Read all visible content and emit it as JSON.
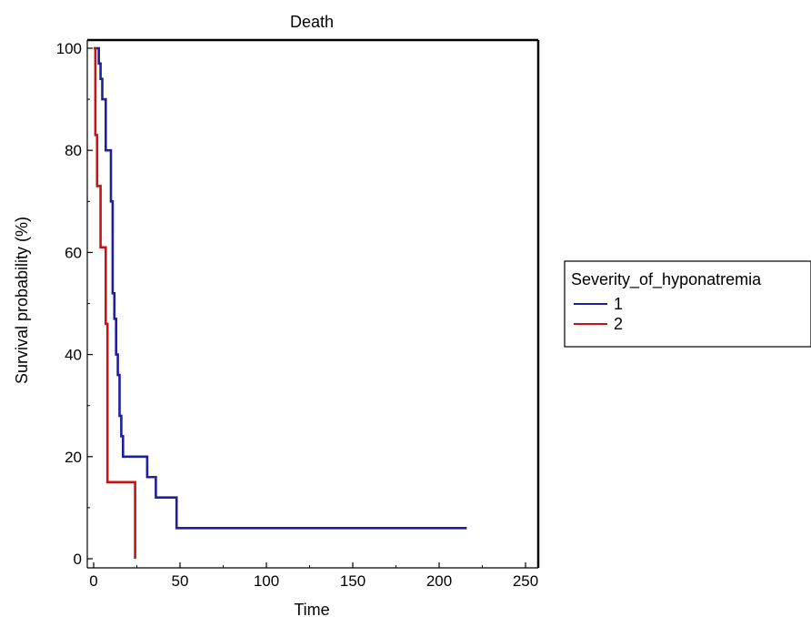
{
  "chart_data": {
    "type": "line",
    "title": "Death",
    "xlabel": "Time",
    "ylabel": "Survival probability (%)",
    "xlim": [
      0,
      250
    ],
    "ylim": [
      0,
      100
    ],
    "xticks": [
      0,
      50,
      100,
      150,
      200,
      250
    ],
    "yticks": [
      0,
      20,
      40,
      60,
      80,
      100
    ],
    "step": true,
    "legend": {
      "title": "Severity_of_hyponatremia",
      "placement": "right"
    },
    "series": [
      {
        "name": "1",
        "color": "#1f1f9a",
        "x": [
          0,
          3,
          4,
          5,
          7,
          10,
          11,
          12,
          13,
          14,
          15,
          16,
          17,
          18,
          31,
          36,
          48,
          216
        ],
        "y": [
          100,
          97,
          94,
          90,
          80,
          70,
          52,
          47,
          40,
          36,
          28,
          24,
          20,
          20,
          16,
          12,
          6,
          6
        ]
      },
      {
        "name": "2",
        "color": "#cc1111",
        "x": [
          0,
          1,
          2,
          4,
          7,
          8,
          24
        ],
        "y": [
          100,
          83,
          73,
          61,
          46,
          15,
          0
        ]
      }
    ]
  }
}
